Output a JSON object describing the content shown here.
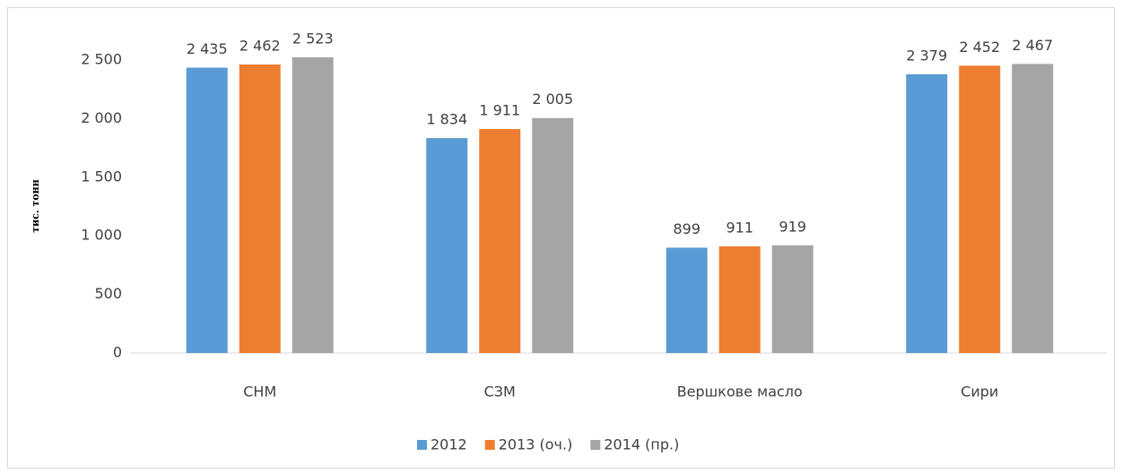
{
  "chart_data": {
    "type": "bar",
    "y_label": "тис. тонн",
    "categories": [
      "СНМ",
      "СЗМ",
      "Вершкове масло",
      "Сири"
    ],
    "series": [
      {
        "name": "2012",
        "color": "#5b9bd5",
        "values": [
          2435,
          1834,
          899,
          2379
        ],
        "value_labels": [
          "2 435",
          "1 834",
          "899",
          "2 379"
        ]
      },
      {
        "name": "2013 (оч.)",
        "color": "#ed7d31",
        "values": [
          2462,
          1911,
          911,
          2452
        ],
        "value_labels": [
          "2 462",
          "1 911",
          "911",
          "2 452"
        ]
      },
      {
        "name": "2014 (пр.)",
        "color": "#a5a5a5",
        "values": [
          2523,
          2005,
          919,
          2467
        ],
        "value_labels": [
          "2 523",
          "2 005",
          "919",
          "2 467"
        ]
      }
    ],
    "ylim": [
      0,
      2500
    ],
    "yticks": [
      0,
      500,
      {
        "value": 1000,
        "label": "1 000"
      },
      {
        "value": 1500,
        "label": "1 500"
      },
      {
        "value": 2000,
        "label": "2 000"
      },
      {
        "value": 2500,
        "label": "2 500"
      }
    ],
    "grid": false,
    "legend": "bottom"
  }
}
